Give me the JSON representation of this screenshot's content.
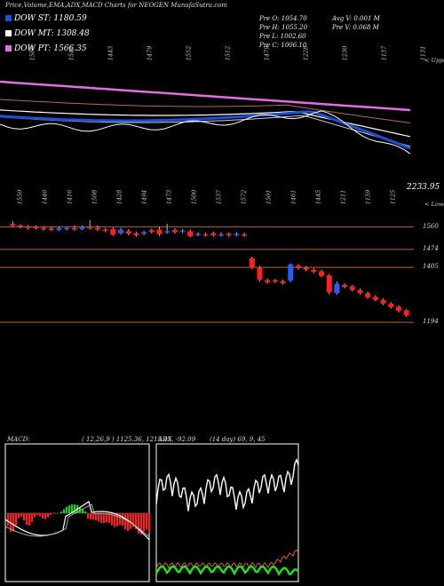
{
  "header": {
    "title": "Price,Volume,EMA,ADX,MACD Charts for NEOGEN MunafaSutra.com"
  },
  "legend": [
    {
      "label": "DOW ST: 1180.59",
      "color": "#1f4fd8"
    },
    {
      "label": "DOW MT: 1308.48",
      "color": "#ffffff"
    },
    {
      "label": "DOW PT: 1566.35",
      "color": "#e070e0"
    }
  ],
  "stats": {
    "prev_open": "Pre O: 1054.70",
    "prev_high": "Pre H: 1055.20",
    "prev_low": "Pre L: 1002.60",
    "prev_close": "Pre C: 1006.10",
    "avg_volume": "Avg V: 0.001 M",
    "prev_volume": "Pre V: 0.068 M"
  },
  "top_labels": [
    "1588",
    "1546",
    "1443",
    "1479",
    "1552",
    "1512",
    "1479",
    "1228",
    "1230",
    "1137",
    "1131"
  ],
  "bottom_labels": [
    "1550",
    "1446",
    "1416",
    "1508",
    "1428",
    "1494",
    "1473",
    "1500",
    "1537",
    "1572",
    "1501",
    "1461",
    "1445",
    "1211",
    "1159",
    "1125"
  ],
  "side_labels": {
    "upper": "< Upper",
    "lower": "< Lower",
    "last_price": "2233.95"
  },
  "price_levels": [
    {
      "label": "1560",
      "value": 1560
    },
    {
      "label": "1474",
      "value": 1474
    },
    {
      "label": "1405",
      "value": 1405
    },
    {
      "label": "1194",
      "value": 1194
    }
  ],
  "macd_caption": {
    "name": "MACD:",
    "values": "( 12,26,9 ) 1125.36, 1215.45, -92.09"
  },
  "adx_caption": {
    "name": "ADX",
    "values": "(14 day) 69, 9, 45"
  },
  "chart_data": {
    "type": "candlestick",
    "title": "Price,Volume,EMA,ADX,MACD Charts for NEOGEN MunafaSutra.com",
    "ylim": [
      1000,
      1620
    ],
    "series": [
      {
        "name": "DOW ST",
        "value": 1180.59,
        "color": "#1f4fd8"
      },
      {
        "name": "DOW MT",
        "value": 1308.48,
        "color": "#ffffff"
      },
      {
        "name": "DOW PT",
        "value": 1566.35,
        "color": "#e070e0"
      }
    ],
    "candles": [
      {
        "o": 1572,
        "c": 1566,
        "h": 1582,
        "l": 1560
      },
      {
        "o": 1566,
        "c": 1560,
        "h": 1570,
        "l": 1554
      },
      {
        "o": 1562,
        "c": 1556,
        "h": 1568,
        "l": 1550
      },
      {
        "o": 1560,
        "c": 1554,
        "h": 1566,
        "l": 1550
      },
      {
        "o": 1556,
        "c": 1550,
        "h": 1562,
        "l": 1546
      },
      {
        "o": 1554,
        "c": 1550,
        "h": 1560,
        "l": 1544
      },
      {
        "o": 1548,
        "c": 1556,
        "h": 1562,
        "l": 1544
      },
      {
        "o": 1552,
        "c": 1556,
        "h": 1560,
        "l": 1546
      },
      {
        "o": 1556,
        "c": 1550,
        "h": 1566,
        "l": 1546
      },
      {
        "o": 1552,
        "c": 1560,
        "h": 1566,
        "l": 1548
      },
      {
        "o": 1560,
        "c": 1554,
        "h": 1586,
        "l": 1550
      },
      {
        "o": 1556,
        "c": 1550,
        "h": 1566,
        "l": 1544
      },
      {
        "o": 1550,
        "c": 1548,
        "h": 1556,
        "l": 1540
      },
      {
        "o": 1552,
        "c": 1530,
        "h": 1558,
        "l": 1526
      },
      {
        "o": 1536,
        "c": 1550,
        "h": 1556,
        "l": 1530
      },
      {
        "o": 1544,
        "c": 1534,
        "h": 1552,
        "l": 1528
      },
      {
        "o": 1536,
        "c": 1528,
        "h": 1542,
        "l": 1522
      },
      {
        "o": 1534,
        "c": 1540,
        "h": 1546,
        "l": 1528
      },
      {
        "o": 1548,
        "c": 1540,
        "h": 1554,
        "l": 1534
      },
      {
        "o": 1550,
        "c": 1532,
        "h": 1560,
        "l": 1526
      },
      {
        "o": 1540,
        "c": 1544,
        "h": 1572,
        "l": 1534
      },
      {
        "o": 1548,
        "c": 1540,
        "h": 1556,
        "l": 1534
      },
      {
        "o": 1542,
        "c": 1546,
        "h": 1552,
        "l": 1536
      },
      {
        "o": 1544,
        "c": 1524,
        "h": 1550,
        "l": 1520
      },
      {
        "o": 1530,
        "c": 1534,
        "h": 1540,
        "l": 1524
      },
      {
        "o": 1532,
        "c": 1528,
        "h": 1538,
        "l": 1522
      },
      {
        "o": 1536,
        "c": 1528,
        "h": 1542,
        "l": 1522
      },
      {
        "o": 1528,
        "c": 1532,
        "h": 1540,
        "l": 1522
      },
      {
        "o": 1534,
        "c": 1528,
        "h": 1540,
        "l": 1522
      },
      {
        "o": 1530,
        "c": 1534,
        "h": 1540,
        "l": 1524
      },
      {
        "o": 1532,
        "c": 1528,
        "h": 1538,
        "l": 1522
      },
      {
        "o": 1440,
        "c": 1404,
        "h": 1446,
        "l": 1398
      },
      {
        "o": 1402,
        "c": 1358,
        "h": 1410,
        "l": 1350
      },
      {
        "o": 1356,
        "c": 1348,
        "h": 1362,
        "l": 1342
      },
      {
        "o": 1356,
        "c": 1350,
        "h": 1360,
        "l": 1344
      },
      {
        "o": 1352,
        "c": 1344,
        "h": 1358,
        "l": 1338
      },
      {
        "o": 1354,
        "c": 1416,
        "h": 1420,
        "l": 1348
      },
      {
        "o": 1412,
        "c": 1402,
        "h": 1418,
        "l": 1396
      },
      {
        "o": 1404,
        "c": 1396,
        "h": 1410,
        "l": 1390
      },
      {
        "o": 1396,
        "c": 1388,
        "h": 1402,
        "l": 1382
      },
      {
        "o": 1390,
        "c": 1372,
        "h": 1396,
        "l": 1366
      },
      {
        "o": 1374,
        "c": 1310,
        "h": 1380,
        "l": 1302
      },
      {
        "o": 1306,
        "c": 1342,
        "h": 1350,
        "l": 1300
      },
      {
        "o": 1338,
        "c": 1330,
        "h": 1344,
        "l": 1324
      },
      {
        "o": 1332,
        "c": 1318,
        "h": 1338,
        "l": 1312
      },
      {
        "o": 1318,
        "c": 1306,
        "h": 1324,
        "l": 1300
      },
      {
        "o": 1306,
        "c": 1290,
        "h": 1312,
        "l": 1284
      },
      {
        "o": 1292,
        "c": 1280,
        "h": 1298,
        "l": 1274
      },
      {
        "o": 1280,
        "c": 1266,
        "h": 1286,
        "l": 1260
      },
      {
        "o": 1266,
        "c": 1252,
        "h": 1272,
        "l": 1246
      },
      {
        "o": 1254,
        "c": 1238,
        "h": 1260,
        "l": 1232
      },
      {
        "o": 1240,
        "c": 1220,
        "h": 1246,
        "l": 1214
      }
    ]
  }
}
